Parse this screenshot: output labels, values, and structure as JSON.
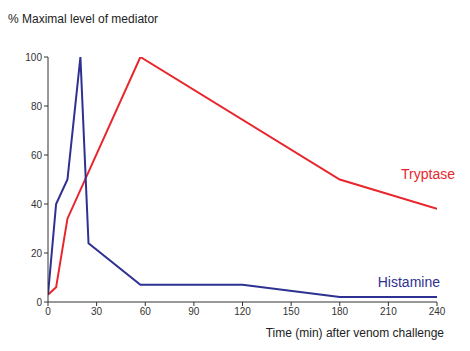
{
  "chart_data": {
    "type": "line",
    "y_label": "% Maximal level of mediator",
    "x_label": "Time (min) after venom challenge",
    "xlim": [
      0,
      240
    ],
    "xticks": [
      0,
      30,
      60,
      90,
      120,
      150,
      180,
      210,
      240
    ],
    "ylim": [
      0,
      100
    ],
    "yticks": [
      0,
      20,
      40,
      60,
      80,
      100
    ],
    "grid": false,
    "series": [
      {
        "name": "Tryptase",
        "color": "#e8262d",
        "x": [
          0,
          5,
          12,
          57,
          180,
          240
        ],
        "values": [
          3,
          6,
          34,
          100,
          50,
          38
        ]
      },
      {
        "name": "Histamine",
        "color": "#2e3192",
        "x": [
          0,
          5,
          12,
          20,
          25,
          57,
          120,
          180,
          240
        ],
        "values": [
          3,
          40,
          50,
          100,
          24,
          7,
          7,
          2,
          2
        ]
      }
    ]
  }
}
